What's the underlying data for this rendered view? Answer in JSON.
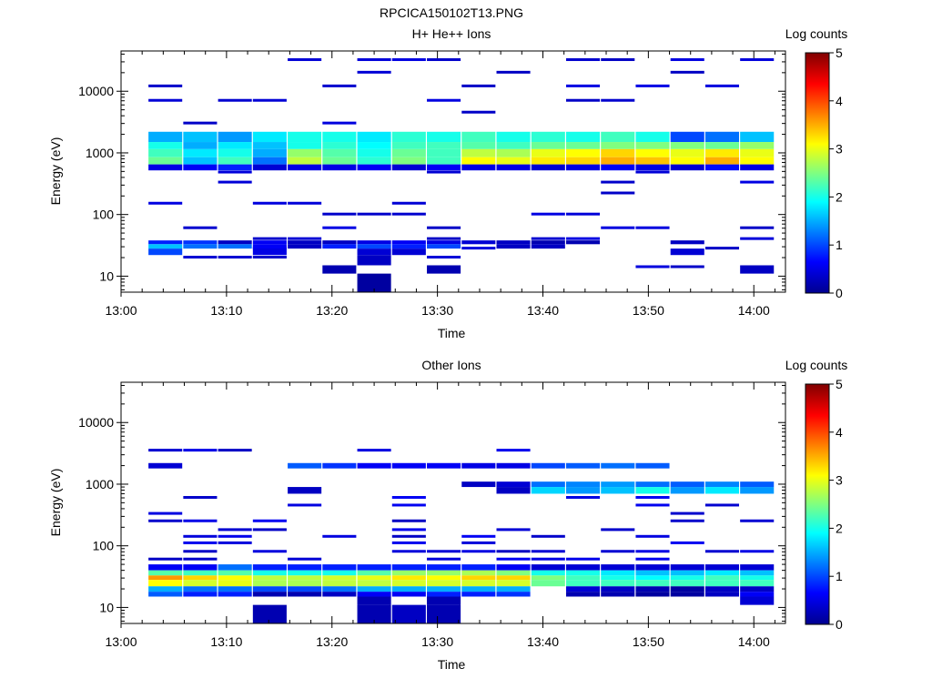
{
  "figure_title": "RPCICA150102T13.PNG",
  "colors": {
    "jet": [
      "#00008f",
      "#0000ff",
      "#00ffff",
      "#ffff00",
      "#ff0000",
      "#800000"
    ]
  },
  "chart_data": [
    {
      "type": "heatmap",
      "title": "H+ He++ Ions",
      "xlabel": "Time",
      "ylabel": "Energy (eV)",
      "x_ticks": [
        "13:00",
        "13:10",
        "13:20",
        "13:30",
        "13:40",
        "13:50",
        "14:00"
      ],
      "xlim_minutes": [
        0,
        63
      ],
      "y_ticks": [
        "10",
        "100",
        "1000",
        "10000"
      ],
      "ylim_eV": [
        5.5,
        45000
      ],
      "yscale": "log",
      "colorbar": {
        "label": "Log counts",
        "ticks": [
          "0",
          "1",
          "2",
          "3",
          "4",
          "5"
        ],
        "range": [
          0,
          5
        ]
      },
      "time_bins_minutes": [
        [
          2.6,
          5.8
        ],
        [
          5.9,
          9.1
        ],
        [
          9.2,
          12.4
        ],
        [
          12.5,
          15.7
        ],
        [
          15.8,
          19.0
        ],
        [
          19.1,
          22.3
        ],
        [
          22.4,
          25.6
        ],
        [
          25.7,
          28.9
        ],
        [
          29.0,
          32.2
        ],
        [
          32.3,
          35.5
        ],
        [
          35.6,
          38.8
        ],
        [
          38.9,
          42.1
        ],
        [
          42.2,
          45.4
        ],
        [
          45.5,
          48.7
        ],
        [
          48.8,
          52.0
        ],
        [
          52.1,
          55.3
        ],
        [
          55.4,
          58.6
        ],
        [
          58.7,
          61.9
        ]
      ],
      "background_bins": {
        "energies_eV": [
          14,
          20,
          28,
          40,
          60,
          100,
          150,
          220,
          330,
          480,
          3000,
          4500,
          7000,
          12000,
          20000,
          32000
        ],
        "log_counts": [
          0.3,
          0.5
        ],
        "density": 0.28
      },
      "bands": [
        {
          "energy_min_eV": 1500,
          "energy_max_eV": 2200,
          "log_counts": [
            1.5,
            1.6,
            1.4,
            1.8,
            2.0,
            2.0,
            1.8,
            2.1,
            2.0,
            2.2,
            2.0,
            2.1,
            2.0,
            2.2,
            2.0,
            1.0,
            1.2,
            1.6
          ]
        },
        {
          "energy_min_eV": 1150,
          "energy_max_eV": 1500,
          "log_counts": [
            2.0,
            1.5,
            1.8,
            1.6,
            2.0,
            2.1,
            1.9,
            2.2,
            2.2,
            2.3,
            2.2,
            2.4,
            2.4,
            2.5,
            2.5,
            2.5,
            2.4,
            2.6
          ]
        },
        {
          "energy_min_eV": 850,
          "energy_max_eV": 1150,
          "log_counts": [
            2.2,
            1.8,
            2.0,
            1.5,
            2.6,
            2.3,
            2.0,
            2.4,
            2.2,
            2.8,
            2.7,
            3.0,
            3.1,
            3.3,
            3.1,
            3.0,
            3.2,
            3.0
          ]
        },
        {
          "energy_min_eV": 650,
          "energy_max_eV": 850,
          "log_counts": [
            2.4,
            1.6,
            2.2,
            1.2,
            2.8,
            2.4,
            2.1,
            2.5,
            2.2,
            3.1,
            3.0,
            3.2,
            3.3,
            3.5,
            3.4,
            3.1,
            3.5,
            3.1
          ]
        },
        {
          "energy_min_eV": 520,
          "energy_max_eV": 650,
          "log_counts": [
            0.5,
            0.6,
            0.8,
            0.4,
            0.5,
            0.5,
            0.6,
            0.4,
            0.6,
            0.5,
            0.5,
            0.4,
            0.5,
            0.6,
            0.5,
            0.4,
            0.7,
            0.5
          ]
        },
        {
          "energy_min_eV": 33,
          "energy_max_eV": 38,
          "log_counts": [
            0.8,
            0.9,
            0.3,
            0.6,
            0.3,
            0.3,
            0.5,
            0.6,
            0.5,
            0.4,
            0.3,
            0.2,
            0.2,
            0.0,
            0.0,
            0.3,
            0.0,
            0.0
          ]
        },
        {
          "energy_min_eV": 28,
          "energy_max_eV": 33,
          "log_counts": [
            1.6,
            1.2,
            1.2,
            0.6,
            0.3,
            0.8,
            1.0,
            0.8,
            1.0,
            0.0,
            0.3,
            0.3,
            0.0,
            0.0,
            0.0,
            0.0,
            0.0,
            0.0
          ]
        },
        {
          "energy_min_eV": 22,
          "energy_max_eV": 28,
          "log_counts": [
            1.0,
            0.0,
            0.0,
            0.5,
            0.0,
            0.0,
            0.4,
            0.4,
            0.0,
            0.0,
            0.0,
            0.0,
            0.0,
            0.0,
            0.0,
            0.4,
            0.0,
            0.0
          ]
        },
        {
          "energy_min_eV": 15,
          "energy_max_eV": 22,
          "log_counts": [
            0.0,
            0.0,
            0.0,
            0.0,
            0.0,
            0.0,
            0.3,
            0.0,
            0.0,
            0.0,
            0.0,
            0.0,
            0.0,
            0.0,
            0.0,
            0.0,
            0.0,
            0.0
          ]
        },
        {
          "energy_min_eV": 11,
          "energy_max_eV": 15,
          "log_counts": [
            0.0,
            0.0,
            0.0,
            0.0,
            0.0,
            0.2,
            0.0,
            0.0,
            0.2,
            0.0,
            0.0,
            0.0,
            0.0,
            0.0,
            0.0,
            0.0,
            0.0,
            0.3
          ]
        },
        {
          "energy_min_eV": 5.5,
          "energy_max_eV": 11,
          "log_counts": [
            0.0,
            0.0,
            0.0,
            0.0,
            0.0,
            0.0,
            0.1,
            0.0,
            0.0,
            0.0,
            0.0,
            0.0,
            0.0,
            0.0,
            0.0,
            0.0,
            0.0,
            0.0
          ]
        }
      ]
    },
    {
      "type": "heatmap",
      "title": "Other Ions",
      "xlabel": "Time",
      "ylabel": "Energy (eV)",
      "x_ticks": [
        "13:00",
        "13:10",
        "13:20",
        "13:30",
        "13:40",
        "13:50",
        "14:00"
      ],
      "xlim_minutes": [
        0,
        63
      ],
      "y_ticks": [
        "10",
        "100",
        "1000",
        "10000"
      ],
      "ylim_eV": [
        5.5,
        45000
      ],
      "yscale": "log",
      "colorbar": {
        "label": "Log counts",
        "ticks": [
          "0",
          "1",
          "2",
          "3",
          "4",
          "5"
        ],
        "range": [
          0,
          5
        ]
      },
      "time_bins_minutes": [
        [
          2.6,
          5.8
        ],
        [
          5.9,
          9.1
        ],
        [
          9.2,
          12.4
        ],
        [
          12.5,
          15.7
        ],
        [
          15.8,
          19.0
        ],
        [
          19.1,
          22.3
        ],
        [
          22.4,
          25.6
        ],
        [
          25.7,
          28.9
        ],
        [
          29.0,
          32.2
        ],
        [
          32.3,
          35.5
        ],
        [
          35.6,
          38.8
        ],
        [
          38.9,
          42.1
        ],
        [
          42.2,
          45.4
        ],
        [
          45.5,
          48.7
        ],
        [
          48.8,
          52.0
        ],
        [
          52.1,
          55.3
        ],
        [
          55.4,
          58.6
        ],
        [
          58.7,
          61.9
        ]
      ],
      "background_bins": {
        "energies_eV": [
          60,
          80,
          110,
          140,
          180,
          250,
          330,
          450,
          600,
          3500
        ],
        "log_counts": [
          0.3,
          0.6
        ],
        "density": 0.3
      },
      "bands": [
        {
          "energy_min_eV": 1800,
          "energy_max_eV": 2200,
          "log_counts": [
            0.4,
            0.0,
            0.0,
            0.0,
            1.1,
            0.9,
            0.6,
            0.6,
            0.6,
            0.5,
            0.5,
            1.0,
            1.1,
            1.2,
            1.1,
            0.0,
            0.0,
            0.0
          ]
        },
        {
          "energy_min_eV": 900,
          "energy_max_eV": 1100,
          "log_counts": [
            0.0,
            0.0,
            0.0,
            0.0,
            0.0,
            0.0,
            0.0,
            0.0,
            0.0,
            0.3,
            0.4,
            1.2,
            1.3,
            1.4,
            1.2,
            1.1,
            1.3,
            1.1
          ]
        },
        {
          "energy_min_eV": 700,
          "energy_max_eV": 900,
          "log_counts": [
            0.0,
            0.0,
            0.0,
            0.0,
            0.3,
            0.0,
            0.0,
            0.0,
            0.0,
            0.0,
            0.3,
            1.7,
            1.4,
            1.6,
            2.0,
            1.4,
            1.8,
            1.4
          ]
        },
        {
          "energy_min_eV": 40,
          "energy_max_eV": 50,
          "log_counts": [
            0.6,
            0.6,
            1.2,
            0.8,
            0.8,
            0.8,
            0.8,
            0.8,
            0.8,
            0.8,
            0.6,
            0.4,
            0.4,
            0.4,
            0.4,
            0.4,
            0.4,
            0.4
          ]
        },
        {
          "energy_min_eV": 33,
          "energy_max_eV": 40,
          "log_counts": [
            2.3,
            2.2,
            2.3,
            2.0,
            2.0,
            2.0,
            2.3,
            2.6,
            2.6,
            2.7,
            2.5,
            2.0,
            2.0,
            1.8,
            1.6,
            1.6,
            1.8,
            1.6
          ]
        },
        {
          "energy_min_eV": 28,
          "energy_max_eV": 33,
          "log_counts": [
            3.6,
            3.3,
            3.1,
            2.8,
            2.8,
            2.9,
            3.0,
            3.2,
            3.1,
            3.3,
            3.3,
            2.5,
            2.2,
            2.0,
            1.9,
            2.0,
            2.2,
            2.0
          ]
        },
        {
          "energy_min_eV": 22,
          "energy_max_eV": 28,
          "log_counts": [
            3.1,
            2.9,
            3.0,
            2.7,
            2.7,
            2.8,
            2.8,
            2.9,
            2.9,
            2.9,
            2.9,
            2.4,
            2.2,
            2.2,
            2.2,
            2.2,
            2.2,
            2.2
          ]
        },
        {
          "energy_min_eV": 18,
          "energy_max_eV": 22,
          "log_counts": [
            1.5,
            1.2,
            1.2,
            1.0,
            1.0,
            1.2,
            1.5,
            1.5,
            1.5,
            1.5,
            1.5,
            0.0,
            0.4,
            0.3,
            0.2,
            0.1,
            0.3,
            0.3
          ]
        },
        {
          "energy_min_eV": 15,
          "energy_max_eV": 18,
          "log_counts": [
            1.1,
            0.8,
            0.8,
            0.2,
            0.2,
            0.3,
            0.6,
            0.6,
            0.8,
            0.8,
            0.9,
            0.0,
            0.2,
            0.2,
            0.1,
            0.1,
            0.3,
            0.6
          ]
        },
        {
          "energy_min_eV": 11,
          "energy_max_eV": 15,
          "log_counts": [
            0.0,
            0.0,
            0.0,
            0.0,
            0.0,
            0.0,
            0.2,
            0.0,
            0.2,
            0.0,
            0.0,
            0.0,
            0.0,
            0.0,
            0.0,
            0.0,
            0.0,
            0.4
          ]
        },
        {
          "energy_min_eV": 5.5,
          "energy_max_eV": 11,
          "log_counts": [
            0.0,
            0.0,
            0.0,
            0.2,
            0.0,
            0.0,
            0.2,
            0.3,
            0.2,
            0.0,
            0.0,
            0.0,
            0.0,
            0.0,
            0.0,
            0.0,
            0.0,
            0.0
          ]
        }
      ]
    }
  ]
}
